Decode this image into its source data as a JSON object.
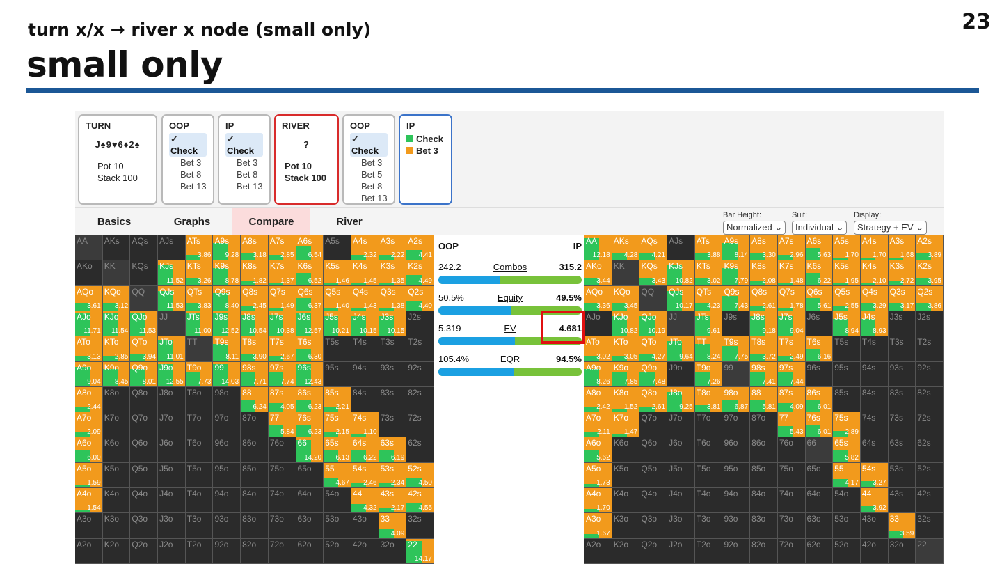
{
  "slide": {
    "page_number": "23",
    "subtitle": "turn x/x → river x node (small only)",
    "title": "small only"
  },
  "nodes": [
    {
      "header": "TURN",
      "board": "J♠9♥6♦2♠",
      "pot": "Pot 10",
      "stack": "Stack 100"
    },
    {
      "header": "OOP",
      "actions": [
        "Check",
        "Bet 3",
        "Bet 8",
        "Bet 13"
      ],
      "selected": 0
    },
    {
      "header": "IP",
      "actions": [
        "Check",
        "Bet 3",
        "Bet 8",
        "Bet 13"
      ],
      "selected": 0
    },
    {
      "header": "RIVER",
      "board": "?",
      "pot": "Pot 10",
      "stack": "Stack 100"
    },
    {
      "header": "OOP",
      "actions": [
        "Check",
        "Bet 3",
        "Bet 5",
        "Bet 8",
        "Bet 13"
      ],
      "selected": 0
    },
    {
      "header": "IP",
      "legend": [
        {
          "label": "Check",
          "color": "#2ec45a"
        },
        {
          "label": "Bet 3",
          "color": "#f29a1c"
        }
      ]
    }
  ],
  "tabs": [
    "Basics",
    "Graphs",
    "Compare",
    "River"
  ],
  "active_tab": "Compare",
  "controls": [
    {
      "label": "Bar Height:",
      "value": "Normalized"
    },
    {
      "label": "Suit:",
      "value": "Individual"
    },
    {
      "label": "Display:",
      "value": "Strategy + EV"
    }
  ],
  "compare": {
    "left_player": "OOP",
    "right_player": "IP",
    "rows": [
      {
        "label": "Combos",
        "left": "242.2",
        "right": "315.2",
        "left_share": 0.43
      },
      {
        "label": "Equity",
        "left": "50.5%",
        "right": "49.5%",
        "left_share": 0.505
      },
      {
        "label": "EV",
        "left": "5.319",
        "right": "4.681",
        "left_share": 0.532
      },
      {
        "label": "EQR",
        "left": "105.4%",
        "right": "94.5%",
        "left_share": 0.527
      }
    ]
  },
  "colors": {
    "check": "#2ec45a",
    "bet": "#f29a1c",
    "hl": "#e01010",
    "header_blue": "#1b5796"
  },
  "hands": [
    [
      "AA",
      "AKs",
      "AQs",
      "AJs",
      "ATs",
      "A9s",
      "A8s",
      "A7s",
      "A6s",
      "A5s",
      "A4s",
      "A3s",
      "A2s"
    ],
    [
      "AKo",
      "KK",
      "KQs",
      "KJs",
      "KTs",
      "K9s",
      "K8s",
      "K7s",
      "K6s",
      "K5s",
      "K4s",
      "K3s",
      "K2s"
    ],
    [
      "AQo",
      "KQo",
      "QQ",
      "QJs",
      "QTs",
      "Q9s",
      "Q8s",
      "Q7s",
      "Q6s",
      "Q5s",
      "Q4s",
      "Q3s",
      "Q2s"
    ],
    [
      "AJo",
      "KJo",
      "QJo",
      "JJ",
      "JTs",
      "J9s",
      "J8s",
      "J7s",
      "J6s",
      "J5s",
      "J4s",
      "J3s",
      "J2s"
    ],
    [
      "ATo",
      "KTo",
      "QTo",
      "JTo",
      "TT",
      "T9s",
      "T8s",
      "T7s",
      "T6s",
      "T5s",
      "T4s",
      "T3s",
      "T2s"
    ],
    [
      "A9o",
      "K9o",
      "Q9o",
      "J9o",
      "T9o",
      "99",
      "98s",
      "97s",
      "96s",
      "95s",
      "94s",
      "93s",
      "92s"
    ],
    [
      "A8o",
      "K8o",
      "Q8o",
      "J8o",
      "T8o",
      "98o",
      "88",
      "87s",
      "86s",
      "85s",
      "84s",
      "83s",
      "82s"
    ],
    [
      "A7o",
      "K7o",
      "Q7o",
      "J7o",
      "T7o",
      "97o",
      "87o",
      "77",
      "76s",
      "75s",
      "74s",
      "73s",
      "72s"
    ],
    [
      "A6o",
      "K6o",
      "Q6o",
      "J6o",
      "T6o",
      "96o",
      "86o",
      "76o",
      "66",
      "65s",
      "64s",
      "63s",
      "62s"
    ],
    [
      "A5o",
      "K5o",
      "Q5o",
      "J5o",
      "T5o",
      "95o",
      "85o",
      "75o",
      "65o",
      "55",
      "54s",
      "53s",
      "52s"
    ],
    [
      "A4o",
      "K4o",
      "Q4o",
      "J4o",
      "T4o",
      "94o",
      "84o",
      "74o",
      "64o",
      "54o",
      "44",
      "43s",
      "42s"
    ],
    [
      "A3o",
      "K3o",
      "Q3o",
      "J3o",
      "T3o",
      "93o",
      "83o",
      "73o",
      "63o",
      "53o",
      "43o",
      "33",
      "32s"
    ],
    [
      "A2o",
      "K2o",
      "Q2o",
      "J2o",
      "T2o",
      "92o",
      "82o",
      "72o",
      "62o",
      "52o",
      "42o",
      "32o",
      "22"
    ]
  ],
  "oop_ev": [
    [
      "",
      "",
      "",
      "",
      "3.86",
      "9.28",
      "3.18",
      "2.85",
      "6.54",
      "",
      "2.32",
      "2.22",
      "4.41"
    ],
    [
      "",
      "",
      "",
      "11.52",
      "3.26",
      "8.78",
      "1.82",
      "1.37",
      "6.52",
      "1.46",
      "1.45",
      "1.35",
      "4.49"
    ],
    [
      "3.61",
      "3.12",
      "",
      "11.53",
      "3.83",
      "8.40",
      "2.45",
      "1.49",
      "6.37",
      "1.40",
      "1.43",
      "1.38",
      "4.40"
    ],
    [
      "11.71",
      "11.54",
      "11.53",
      "",
      "11.00",
      "12.52",
      "10.54",
      "10.38",
      "12.57",
      "10.21",
      "10.15",
      "10.15",
      ""
    ],
    [
      "3.13",
      "2.85",
      "3.94",
      "11.01",
      "",
      "8.11",
      "3.90",
      "2.67",
      "6.30",
      "",
      "",
      "",
      ""
    ],
    [
      "9.04",
      "8.45",
      "8.01",
      "12.55",
      "7.73",
      "14.03",
      "7.71",
      "7.74",
      "12.43",
      "",
      "",
      "",
      ""
    ],
    [
      "2.44",
      "",
      "",
      "",
      "",
      "",
      "6.24",
      "4.05",
      "6.23",
      "2.21",
      "",
      "",
      ""
    ],
    [
      "2.09",
      "",
      "",
      "",
      "",
      "",
      "",
      "5.84",
      "6.23",
      "2.15",
      "1.10",
      "",
      ""
    ],
    [
      "6.00",
      "",
      "",
      "",
      "",
      "",
      "",
      "",
      "14.20",
      "6.13",
      "6.22",
      "6.19",
      ""
    ],
    [
      "1.59",
      "",
      "",
      "",
      "",
      "",
      "",
      "",
      "",
      "4.67",
      "2.46",
      "2.34",
      "4.50"
    ],
    [
      "1.54",
      "",
      "",
      "",
      "",
      "",
      "",
      "",
      "",
      "",
      "4.32",
      "2.17",
      "4.55"
    ],
    [
      "",
      "",
      "",
      "",
      "",
      "",
      "",
      "",
      "",
      "",
      "",
      "4.09",
      ""
    ],
    [
      "",
      "",
      "",
      "",
      "",
      "",
      "",
      "",
      "",
      "",
      "",
      "",
      "14.17"
    ]
  ],
  "ip_ev": [
    [
      "12.18",
      "4.28",
      "4.21",
      "",
      "3.88",
      "8.14",
      "3.30",
      "2.96",
      "5.63",
      "1.70",
      "1.70",
      "1.68",
      "3.89"
    ],
    [
      "3.44",
      "",
      "3.43",
      "10.82",
      "3.02",
      "7.79",
      "2.08",
      "1.48",
      "6.22",
      "1.95",
      "2.10",
      "2.72",
      "3.95"
    ],
    [
      "3.36",
      "3.45",
      "",
      "10.17",
      "4.23",
      "7.43",
      "2.61",
      "1.78",
      "5.61",
      "2.55",
      "3.29",
      "3.17",
      "3.86"
    ],
    [
      "",
      "10.82",
      "10.19",
      "",
      "9.61",
      "",
      "9.18",
      "9.04",
      "",
      "8.94",
      "8.93",
      "",
      ""
    ],
    [
      "3.02",
      "3.05",
      "4.27",
      "9.64",
      "8.24",
      "7.75",
      "3.72",
      "2.49",
      "6.16",
      "",
      "",
      "",
      ""
    ],
    [
      "8.26",
      "7.85",
      "7.48",
      "",
      "7.26",
      "",
      "7.41",
      "7.44",
      "",
      "",
      "",
      "",
      ""
    ],
    [
      "2.42",
      "1.52",
      "2.61",
      "9.25",
      "3.81",
      "6.87",
      "5.81",
      "4.09",
      "6.01",
      "",
      "",
      "",
      ""
    ],
    [
      "2.11",
      "1.47",
      "",
      "",
      "",
      "",
      "",
      "5.43",
      "6.01",
      "2.89",
      "",
      "",
      ""
    ],
    [
      "5.62",
      "",
      "",
      "",
      "",
      "",
      "",
      "",
      "",
      "5.82",
      "",
      "",
      ""
    ],
    [
      "1.73",
      "",
      "",
      "",
      "",
      "",
      "",
      "",
      "",
      "4.17",
      "3.27",
      "",
      ""
    ],
    [
      "1.70",
      "",
      "",
      "",
      "",
      "",
      "",
      "",
      "",
      "",
      "3.92",
      "",
      ""
    ],
    [
      "1.67",
      "",
      "",
      "",
      "",
      "",
      "",
      "",
      "",
      "",
      "",
      "3.59",
      ""
    ],
    [
      "",
      "",
      "",
      "",
      "",
      "",
      "",
      "",
      "",
      "",
      "",
      "",
      ""
    ]
  ],
  "oop_mix": [
    [
      -1,
      -1,
      -1,
      -1,
      0.2,
      0.7,
      0.25,
      0.2,
      0.55,
      -1,
      0.2,
      0.2,
      0.4
    ],
    [
      -1,
      -1,
      -1,
      0.8,
      0.3,
      0.7,
      0.15,
      0.1,
      0.5,
      0.1,
      0.1,
      0.1,
      0.4
    ],
    [
      0.3,
      0.3,
      -1,
      0.8,
      0.3,
      0.7,
      0.2,
      0.1,
      0.5,
      0.1,
      0.1,
      0.1,
      0.4
    ],
    [
      0.9,
      0.9,
      0.9,
      -1,
      0.9,
      0.9,
      0.85,
      0.85,
      0.9,
      0.8,
      0.8,
      0.8,
      -1
    ],
    [
      0.2,
      0.2,
      0.3,
      0.85,
      -1,
      0.7,
      0.3,
      0.2,
      0.5,
      -1,
      -1,
      -1,
      -1
    ],
    [
      0.8,
      0.7,
      0.7,
      0.9,
      0.6,
      0.9,
      0.6,
      0.6,
      0.9,
      -1,
      -1,
      -1,
      -1
    ],
    [
      0.2,
      -1,
      -1,
      -1,
      -1,
      -1,
      0.5,
      0.35,
      0.5,
      0.2,
      -1,
      -1,
      -1
    ],
    [
      0.2,
      -1,
      -1,
      -1,
      -1,
      -1,
      -1,
      0.5,
      0.5,
      0.2,
      0.1,
      -1,
      -1
    ],
    [
      0.5,
      -1,
      -1,
      -1,
      -1,
      -1,
      -1,
      -1,
      0.9,
      0.5,
      0.5,
      0.5,
      -1
    ],
    [
      0.1,
      -1,
      -1,
      -1,
      -1,
      -1,
      -1,
      -1,
      -1,
      0.4,
      0.2,
      0.2,
      0.4
    ],
    [
      0.1,
      -1,
      -1,
      -1,
      -1,
      -1,
      -1,
      -1,
      -1,
      -1,
      0.35,
      0.2,
      0.4
    ],
    [
      -1,
      -1,
      -1,
      -1,
      -1,
      -1,
      -1,
      -1,
      -1,
      -1,
      -1,
      0.35,
      -1
    ],
    [
      -1,
      -1,
      -1,
      -1,
      -1,
      -1,
      -1,
      -1,
      -1,
      -1,
      -1,
      -1,
      0.9
    ]
  ],
  "ip_mix": [
    [
      0.9,
      0.3,
      0.3,
      -1,
      0.3,
      0.7,
      0.25,
      0.2,
      0.5,
      0.1,
      0.1,
      0.1,
      0.3
    ],
    [
      0.3,
      -1,
      0.3,
      0.8,
      0.3,
      0.7,
      0.15,
      0.1,
      0.5,
      0.1,
      0.1,
      0.2,
      0.3
    ],
    [
      0.3,
      0.3,
      -1,
      0.8,
      0.3,
      0.6,
      0.2,
      0.1,
      0.5,
      0.2,
      0.3,
      0.3,
      0.3
    ],
    [
      -1,
      0.8,
      0.8,
      -1,
      0.8,
      -1,
      0.8,
      0.8,
      -1,
      0.7,
      0.7,
      -1,
      -1
    ],
    [
      0.2,
      0.2,
      0.3,
      0.8,
      0.7,
      0.6,
      0.3,
      0.2,
      0.5,
      -1,
      -1,
      -1,
      -1
    ],
    [
      0.7,
      0.6,
      0.6,
      -1,
      0.6,
      -1,
      0.6,
      0.6,
      -1,
      -1,
      -1,
      -1,
      -1
    ],
    [
      0.2,
      0.1,
      0.2,
      0.8,
      0.3,
      0.5,
      0.5,
      0.35,
      0.5,
      -1,
      -1,
      -1,
      -1
    ],
    [
      0.2,
      0.1,
      -1,
      -1,
      -1,
      -1,
      -1,
      0.45,
      0.5,
      0.25,
      -1,
      -1,
      -1
    ],
    [
      0.5,
      -1,
      -1,
      -1,
      -1,
      -1,
      -1,
      -1,
      -1,
      0.5,
      -1,
      -1,
      -1
    ],
    [
      0.15,
      -1,
      -1,
      -1,
      -1,
      -1,
      -1,
      -1,
      -1,
      0.35,
      0.25,
      -1,
      -1
    ],
    [
      0.15,
      -1,
      -1,
      -1,
      -1,
      -1,
      -1,
      -1,
      -1,
      -1,
      0.3,
      -1,
      -1
    ],
    [
      0.15,
      -1,
      -1,
      -1,
      -1,
      -1,
      -1,
      -1,
      -1,
      -1,
      -1,
      0.3,
      -1
    ],
    [
      -1,
      -1,
      -1,
      -1,
      -1,
      -1,
      -1,
      -1,
      -1,
      -1,
      -1,
      -1,
      -1
    ]
  ]
}
